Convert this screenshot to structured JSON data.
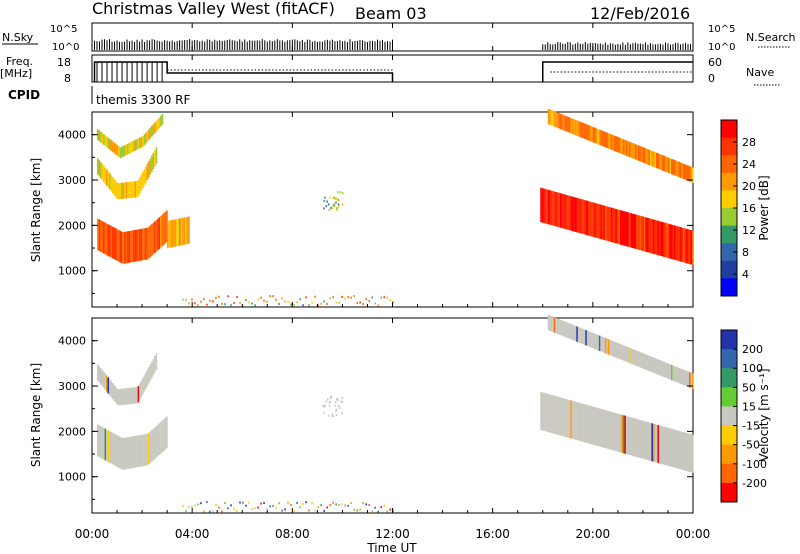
{
  "header": {
    "title": "Christmas Valley West (fitACF)",
    "beam": "Beam 03",
    "date": "12/Feb/2016"
  },
  "nsky_panel": {
    "left_label": "N.Sky",
    "left_ticks": [
      "10^5",
      "10^0"
    ],
    "right_ticks": [
      "10^5",
      "10^0"
    ],
    "right_label": "N.Search"
  },
  "freq_panel": {
    "left_label_top": "Freq.",
    "left_label_bottom": "[MHz]",
    "left_ticks": [
      "18",
      "8"
    ],
    "right_ticks": [
      "60",
      "0"
    ],
    "right_label": "Nave"
  },
  "cpid": {
    "label": "CPID",
    "program": "themis 3300 RF"
  },
  "x_axis": {
    "label": "Time UT",
    "ticks": [
      "00:00",
      "04:00",
      "08:00",
      "12:00",
      "16:00",
      "20:00",
      "00:00"
    ]
  },
  "y_axis": {
    "label": "Slant Range [km]",
    "ticks": [
      "1000",
      "2000",
      "3000",
      "4000"
    ]
  },
  "power_scale": {
    "label": "Power [dB]",
    "ticks": [
      "28",
      "24",
      "20",
      "16",
      "12",
      "8",
      "4"
    ],
    "colors": [
      "#ff0000",
      "#ff3300",
      "#ff6600",
      "#ff9900",
      "#ffcc00",
      "#99cc33",
      "#339966",
      "#3366aa",
      "#1f3fa0",
      "#0000ff"
    ]
  },
  "velocity_scale": {
    "label": "Velocity [m s⁻¹]",
    "ticks": [
      "200",
      "100",
      "50",
      "15",
      "-15",
      "-50",
      "-100",
      "-200"
    ],
    "colors": [
      "#2233aa",
      "#3366aa",
      "#339966",
      "#66cc33",
      "#c8c8c0",
      "#ffcc00",
      "#ff9900",
      "#ff6600",
      "#ff0000"
    ]
  },
  "chart_data": [
    {
      "type": "heatmap",
      "name": "power",
      "x_range_hours": [
        0,
        24
      ],
      "y_range_km": [
        200,
        4500
      ],
      "regions": [
        {
          "x": [
            0.2,
            1.2,
            2.2,
            3.0
          ],
          "y_center": [
            1800,
            1500,
            1600,
            2000
          ],
          "half_width_km": 350,
          "value_db": 25
        },
        {
          "x": [
            0.2,
            1.0,
            1.8,
            2.6
          ],
          "y_center": [
            3300,
            2750,
            2800,
            3600
          ],
          "half_width_km": 180,
          "value_db": 18
        },
        {
          "x": [
            0.2,
            1.1,
            2.0,
            2.8
          ],
          "y_center": [
            4000,
            3600,
            3850,
            4350
          ],
          "half_width_km": 120,
          "value_db": 18
        },
        {
          "x": [
            3.0,
            3.9
          ],
          "y_center": [
            1800,
            1900
          ],
          "half_width_km": 300,
          "value_db": 20
        },
        {
          "x": [
            17.9,
            24.0
          ],
          "y_center": [
            2450,
            1500
          ],
          "half_width_km": 380,
          "value_db": 28
        },
        {
          "x": [
            18.2,
            24.0
          ],
          "y_center": [
            4400,
            3100
          ],
          "half_width_km": 170,
          "value_db": 22
        }
      ]
    },
    {
      "type": "heatmap",
      "name": "velocity",
      "x_range_hours": [
        0,
        24
      ],
      "y_range_km": [
        200,
        4500
      ],
      "regions": [
        {
          "x": [
            0.2,
            1.2,
            2.2,
            3.0
          ],
          "y_center": [
            1800,
            1500,
            1600,
            2000
          ],
          "half_width_km": 350,
          "value_ms": 0
        },
        {
          "x": [
            0.2,
            1.0,
            1.8,
            2.6
          ],
          "y_center": [
            3300,
            2750,
            2800,
            3600
          ],
          "half_width_km": 180,
          "value_ms": 0
        },
        {
          "x": [
            17.9,
            24.0
          ],
          "y_center": [
            2450,
            1500
          ],
          "half_width_km": 420,
          "value_ms": 0
        },
        {
          "x": [
            18.2,
            24.0
          ],
          "y_center": [
            4400,
            3100
          ],
          "half_width_km": 170,
          "value_ms": 0
        }
      ]
    }
  ]
}
